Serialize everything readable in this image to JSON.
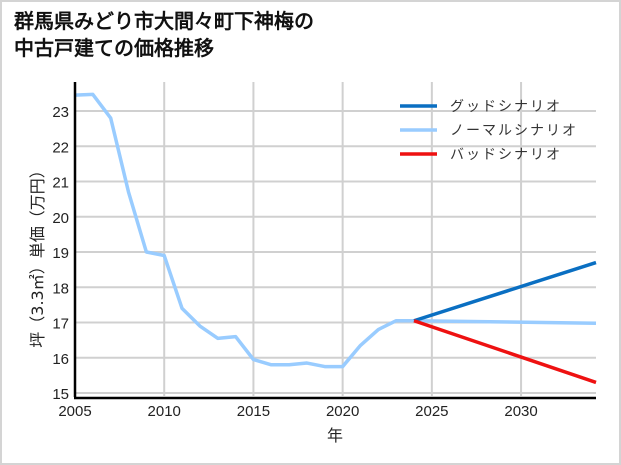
{
  "title": {
    "line1": "群馬県みどり市大間々町下神梅の",
    "line2": "中古戸建ての価格推移"
  },
  "colors": {
    "good": "#0a6fc2",
    "normal": "#99ccff",
    "bad": "#ee1111",
    "grid": "#d0d0d0",
    "axis": "#000000"
  },
  "chart_data": {
    "type": "line",
    "title": "群馬県みどり市大間々町下神梅の中古戸建ての価格推移",
    "xlabel": "年",
    "ylabel": "坪（3.3㎡）単価（万円）",
    "xlim": [
      2005,
      2034.2
    ],
    "ylim": [
      15,
      23.6
    ],
    "xticks": [
      2005,
      2010,
      2015,
      2020,
      2025,
      2030
    ],
    "yticks": [
      15,
      16,
      17,
      18,
      19,
      20,
      21,
      22,
      23
    ],
    "grid": true,
    "legend_position": "upper right",
    "legend": [
      "グッドシナリオ",
      "ノーマルシナリオ",
      "バッドシナリオ"
    ],
    "series": [
      {
        "name": "ノーマルシナリオ",
        "role": "historical",
        "color": "#99ccff",
        "x": [
          2005,
          2006,
          2007,
          2008,
          2009,
          2010,
          2011,
          2012,
          2013,
          2014,
          2015,
          2016,
          2017,
          2018,
          2019,
          2020,
          2021,
          2022,
          2023,
          2024
        ],
        "values": [
          23.45,
          23.47,
          22.8,
          20.7,
          19.0,
          18.9,
          17.4,
          16.9,
          16.55,
          16.6,
          15.95,
          15.8,
          15.8,
          15.85,
          15.75,
          15.75,
          16.35,
          16.8,
          17.05,
          17.05
        ]
      },
      {
        "name": "グッドシナリオ",
        "color": "#0a6fc2",
        "x": [
          2024,
          2034.2
        ],
        "values": [
          17.05,
          18.7
        ]
      },
      {
        "name": "ノーマルシナリオ",
        "role": "forecast",
        "color": "#99ccff",
        "x": [
          2024,
          2034.2
        ],
        "values": [
          17.05,
          16.98
        ]
      },
      {
        "name": "バッドシナリオ",
        "color": "#ee1111",
        "x": [
          2024,
          2034.2
        ],
        "values": [
          17.05,
          15.3
        ]
      }
    ]
  }
}
